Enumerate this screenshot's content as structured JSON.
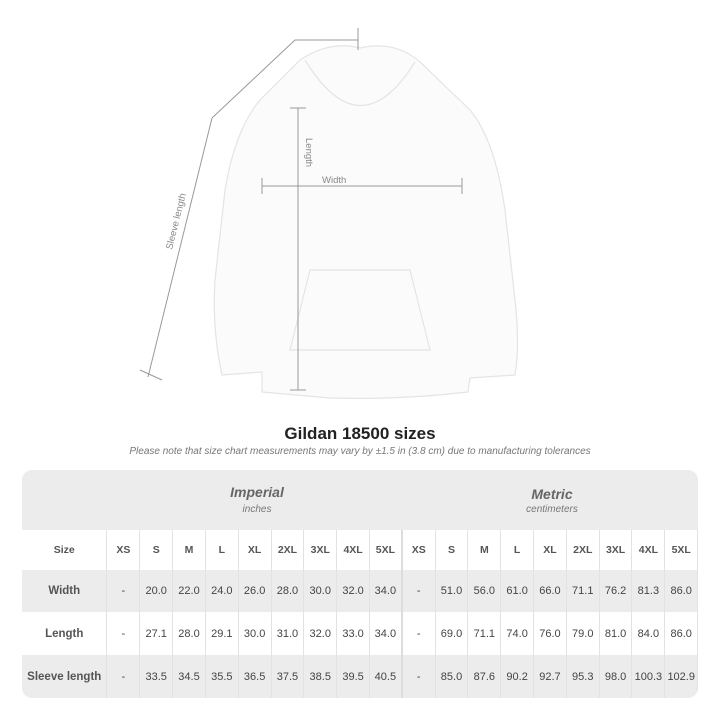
{
  "diagram": {
    "sleeve_label": "Sleeve length",
    "length_label": "Length",
    "width_label": "Width"
  },
  "title": "Gildan 18500 sizes",
  "note": "Please note that size chart measurements may vary by ±1.5 in (3.8 cm) due to manufacturing tolerances",
  "imperial": {
    "name": "Imperial",
    "unit": "inches"
  },
  "metric": {
    "name": "Metric",
    "unit": "centimeters"
  },
  "size_label": "Size",
  "sizes": [
    "XS",
    "S",
    "M",
    "L",
    "XL",
    "2XL",
    "3XL",
    "4XL",
    "5XL"
  ],
  "rows": [
    {
      "label": "Width",
      "imperial": [
        "-",
        "20.0",
        "22.0",
        "24.0",
        "26.0",
        "28.0",
        "30.0",
        "32.0",
        "34.0"
      ],
      "metric": [
        "-",
        "51.0",
        "56.0",
        "61.0",
        "66.0",
        "71.1",
        "76.2",
        "81.3",
        "86.0"
      ]
    },
    {
      "label": "Length",
      "imperial": [
        "-",
        "27.1",
        "28.0",
        "29.1",
        "30.0",
        "31.0",
        "32.0",
        "33.0",
        "34.0"
      ],
      "metric": [
        "-",
        "69.0",
        "71.1",
        "74.0",
        "76.0",
        "79.0",
        "81.0",
        "84.0",
        "86.0"
      ]
    },
    {
      "label": "Sleeve length",
      "imperial": [
        "-",
        "33.5",
        "34.5",
        "35.5",
        "36.5",
        "37.5",
        "38.5",
        "39.5",
        "40.5"
      ],
      "metric": [
        "-",
        "85.0",
        "87.6",
        "90.2",
        "92.7",
        "95.3",
        "98.0",
        "100.3",
        "102.9"
      ]
    }
  ]
}
